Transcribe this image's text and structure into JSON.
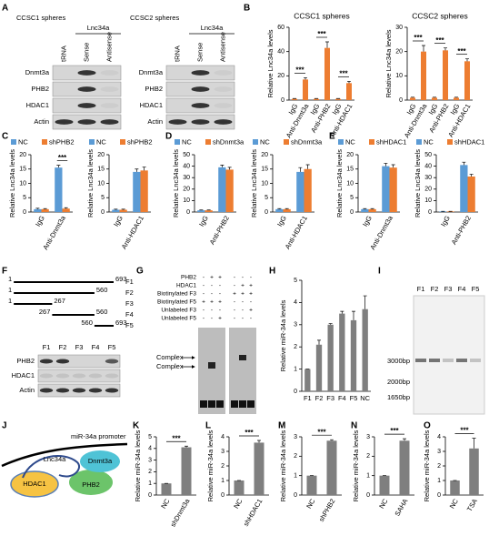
{
  "panel_labels": [
    "A",
    "B",
    "C",
    "D",
    "E",
    "F",
    "G",
    "H",
    "I",
    "J",
    "K",
    "L",
    "M",
    "N",
    "O"
  ],
  "blots": [
    {
      "title": "CCSC1 spheres",
      "group": "Lnc34a",
      "lanes": [
        "tRNA",
        "Sense",
        "Antisense"
      ],
      "rows": [
        "Dnmt3a",
        "PHB2",
        "HDAC1",
        "Actin"
      ]
    },
    {
      "title": "CCSC2 spheres",
      "group": "Lnc34a",
      "lanes": [
        "tRNA",
        "Sense",
        "Antisense"
      ],
      "rows": [
        "Dnmt3a",
        "PHB2",
        "HDAC1",
        "Actin"
      ]
    },
    {
      "lanes": [
        "F1",
        "F2",
        "F3",
        "F4",
        "F5"
      ],
      "rows": [
        "PHB2",
        "HDAC1",
        "Actin"
      ]
    }
  ],
  "fragments": [
    {
      "start": 1,
      "end": 693,
      "name": "F1"
    },
    {
      "start": 1,
      "end": 560,
      "name": "F2"
    },
    {
      "start": 1,
      "end": 267,
      "name": "F3"
    },
    {
      "start": 267,
      "end": 560,
      "name": "F4"
    },
    {
      "start": 560,
      "end": 693,
      "name": "F5"
    }
  ],
  "emsa": {
    "rows": [
      {
        "name": "PHB2",
        "signs": [
          "-",
          "+",
          "+",
          "-",
          "-",
          "-"
        ]
      },
      {
        "name": "HDAC1",
        "signs": [
          "-",
          "-",
          "-",
          "-",
          "+",
          "+"
        ]
      },
      {
        "name": "Biotinylated F3",
        "signs": [
          "-",
          "-",
          "-",
          "+",
          "+",
          "+"
        ]
      },
      {
        "name": "Biotinylated F5",
        "signs": [
          "+",
          "+",
          "+",
          "-",
          "-",
          "-"
        ]
      },
      {
        "name": "Unlabeled F3",
        "signs": [
          "-",
          "-",
          "-",
          "-",
          "-",
          "+"
        ]
      },
      {
        "name": "Unlabeled F5",
        "signs": [
          "-",
          "-",
          "+",
          "-",
          "-",
          "-"
        ]
      }
    ],
    "complex_labels": [
      "Complex",
      "Complex"
    ]
  },
  "gel": {
    "lanes": [
      "F1",
      "F2",
      "F3",
      "F4",
      "F5"
    ],
    "markers": [
      "3000bp",
      "2000bp",
      "1650bp"
    ]
  },
  "diagram": {
    "promoter": "miR-34a promoter",
    "nodes": [
      "Lnc34a",
      "Dnmt3a",
      "HDAC1",
      "PHB2"
    ]
  },
  "chart_data": [
    {
      "type": "bar",
      "title": "CCSC1 spheres",
      "y_label": "Relative Lnc34a levels",
      "categories": [
        "IgG",
        "Anti-Dnmt3a",
        "IgG",
        "Anti-PHB2",
        "IgG",
        "Anti-HDAC1"
      ],
      "series": [
        {
          "color": "#ed7d31",
          "values": [
            1,
            17,
            1,
            43,
            1,
            14
          ],
          "errors": [
            0.3,
            1.5,
            0.3,
            5,
            0.3,
            1.5
          ]
        }
      ],
      "ylim": [
        0,
        60
      ],
      "yticks": [
        0,
        20,
        40,
        60
      ],
      "annotations": [
        "***",
        "***",
        "***"
      ]
    },
    {
      "type": "bar",
      "title": "CCSC2 spheres",
      "y_label": "Relative Lnc34a levels",
      "categories": [
        "IgG",
        "Anti-Dnmt3a",
        "IgG",
        "Anti-PHB2",
        "IgG",
        "Anti-HDAC1"
      ],
      "series": [
        {
          "color": "#ed7d31",
          "values": [
            1,
            20,
            1,
            20.5,
            1,
            16
          ],
          "errors": [
            0.2,
            2.5,
            0.2,
            1,
            0.2,
            1
          ]
        }
      ],
      "ylim": [
        0,
        30
      ],
      "yticks": [
        0,
        10,
        20,
        30
      ],
      "annotations": [
        "***",
        "***",
        "***"
      ]
    },
    {
      "type": "bar",
      "y_label": "Relative Lnc34a levels",
      "categories": [
        "IgG",
        "Anti-Dnmt3a"
      ],
      "legend": true,
      "series": [
        {
          "name": "NC",
          "color": "#5b9bd5",
          "values": [
            1,
            15.5
          ],
          "errors": [
            0.3,
            0.8
          ]
        },
        {
          "name": "shPHB2",
          "color": "#ed7d31",
          "values": [
            1,
            1.2
          ],
          "errors": [
            0.2,
            0.3
          ]
        }
      ],
      "ylim": [
        0,
        20
      ],
      "yticks": [
        0,
        5,
        10,
        15,
        20
      ],
      "annotations": [
        "***"
      ]
    },
    {
      "type": "bar",
      "y_label": "Relative Lnc34a levels",
      "categories": [
        "IgG",
        "Anti-HDAC1"
      ],
      "legend": true,
      "series": [
        {
          "name": "NC",
          "color": "#5b9bd5",
          "values": [
            0.8,
            14
          ],
          "errors": [
            0.2,
            1
          ]
        },
        {
          "name": "shPHB2",
          "color": "#ed7d31",
          "values": [
            0.8,
            14.5
          ],
          "errors": [
            0.2,
            1.2
          ]
        }
      ],
      "ylim": [
        0,
        20
      ],
      "yticks": [
        0,
        5,
        10,
        15,
        20
      ]
    },
    {
      "type": "bar",
      "y_label": "Relative Lnc34a levels",
      "categories": [
        "IgG",
        "Anti-PHB2"
      ],
      "legend": true,
      "series": [
        {
          "name": "NC",
          "color": "#5b9bd5",
          "values": [
            1.5,
            39
          ],
          "errors": [
            0.3,
            2
          ]
        },
        {
          "name": "shDnmt3a",
          "color": "#ed7d31",
          "values": [
            1.5,
            37
          ],
          "errors": [
            0.3,
            2
          ]
        }
      ],
      "ylim": [
        0,
        50
      ],
      "yticks": [
        0,
        10,
        20,
        30,
        40,
        50
      ]
    },
    {
      "type": "bar",
      "y_label": "Relative Lnc34a levels",
      "categories": [
        "IgG",
        "Anti-HDAC1"
      ],
      "legend": true,
      "series": [
        {
          "name": "NC",
          "color": "#5b9bd5",
          "values": [
            1,
            14
          ],
          "errors": [
            0.2,
            1.5
          ]
        },
        {
          "name": "shDnmt3a",
          "color": "#ed7d31",
          "values": [
            1,
            15
          ],
          "errors": [
            0.2,
            1.5
          ]
        }
      ],
      "ylim": [
        0,
        20
      ],
      "yticks": [
        0,
        5,
        10,
        15,
        20
      ]
    },
    {
      "type": "bar",
      "y_label": "Relative Lnc34a levels",
      "categories": [
        "IgG",
        "Anti-Dnmt3a"
      ],
      "legend": true,
      "series": [
        {
          "name": "NC",
          "color": "#5b9bd5",
          "values": [
            1,
            16
          ],
          "errors": [
            0.2,
            1
          ]
        },
        {
          "name": "shHDAC1",
          "color": "#ed7d31",
          "values": [
            1,
            15.5
          ],
          "errors": [
            0.2,
            1
          ]
        }
      ],
      "ylim": [
        0,
        20
      ],
      "yticks": [
        0,
        5,
        10,
        15,
        20
      ]
    },
    {
      "type": "bar",
      "y_label": "Relative Lnc34a levels",
      "categories": [
        "IgG",
        "Anti-PHB2"
      ],
      "legend": true,
      "series": [
        {
          "name": "NC",
          "color": "#5b9bd5",
          "values": [
            0.5,
            41
          ],
          "errors": [
            0.1,
            2.5
          ]
        },
        {
          "name": "shHDAC1",
          "color": "#ed7d31",
          "values": [
            0.5,
            31
          ],
          "errors": [
            0.1,
            2
          ]
        }
      ],
      "ylim": [
        0,
        50
      ],
      "yticks": [
        0,
        10,
        20,
        30,
        40,
        50
      ]
    },
    {
      "type": "bar",
      "y_label": "Relative miR-34a levels",
      "categories": [
        "F1",
        "F2",
        "F3",
        "F4",
        "F5",
        "NC"
      ],
      "series": [
        {
          "color": "#7f7f7f",
          "values": [
            1,
            2.1,
            3.0,
            3.5,
            3.2,
            3.7
          ],
          "errors": [
            0,
            0.2,
            0.05,
            0.1,
            0.4,
            0.6
          ]
        }
      ],
      "ylim": [
        0,
        5
      ],
      "yticks": [
        0,
        1,
        2,
        3,
        4,
        5
      ]
    },
    {
      "type": "bar",
      "y_label": "Relative miR-34a levels",
      "categories": [
        "NC",
        "shDnmt3a"
      ],
      "series": [
        {
          "color": "#7f7f7f",
          "values": [
            1,
            4.1
          ],
          "errors": [
            0,
            0.1
          ]
        }
      ],
      "ylim": [
        0,
        5
      ],
      "yticks": [
        0,
        1,
        2,
        3,
        4,
        5
      ],
      "annotations": [
        "***"
      ]
    },
    {
      "type": "bar",
      "y_label": "Relative miR-34a levels",
      "categories": [
        "NC",
        "shHDAC1"
      ],
      "series": [
        {
          "color": "#7f7f7f",
          "values": [
            1,
            3.6
          ],
          "errors": [
            0,
            0.15
          ]
        }
      ],
      "ylim": [
        0,
        4
      ],
      "yticks": [
        0,
        1,
        2,
        3,
        4
      ],
      "annotations": [
        "***"
      ]
    },
    {
      "type": "bar",
      "y_label": "Relative miR-34a levels",
      "categories": [
        "NC",
        "shPHB2"
      ],
      "series": [
        {
          "color": "#7f7f7f",
          "values": [
            1,
            2.8
          ],
          "errors": [
            0,
            0.05
          ]
        }
      ],
      "ylim": [
        0,
        3
      ],
      "yticks": [
        0,
        1,
        2,
        3
      ],
      "annotations": [
        "***"
      ]
    },
    {
      "type": "bar",
      "y_label": "Relative miR-34a levels",
      "categories": [
        "NC",
        "SAHA"
      ],
      "series": [
        {
          "color": "#7f7f7f",
          "values": [
            1,
            2.8
          ],
          "errors": [
            0,
            0.1
          ]
        }
      ],
      "ylim": [
        0,
        3
      ],
      "yticks": [
        0,
        1,
        2,
        3
      ],
      "annotations": [
        "***"
      ]
    },
    {
      "type": "bar",
      "y_label": "Relative miR-34a levels",
      "categories": [
        "NC",
        "TSA"
      ],
      "series": [
        {
          "color": "#7f7f7f",
          "values": [
            1,
            3.2
          ],
          "errors": [
            0,
            0.7
          ]
        }
      ],
      "ylim": [
        0,
        4
      ],
      "yticks": [
        0,
        1,
        2,
        3,
        4
      ],
      "annotations": [
        "***"
      ]
    }
  ]
}
